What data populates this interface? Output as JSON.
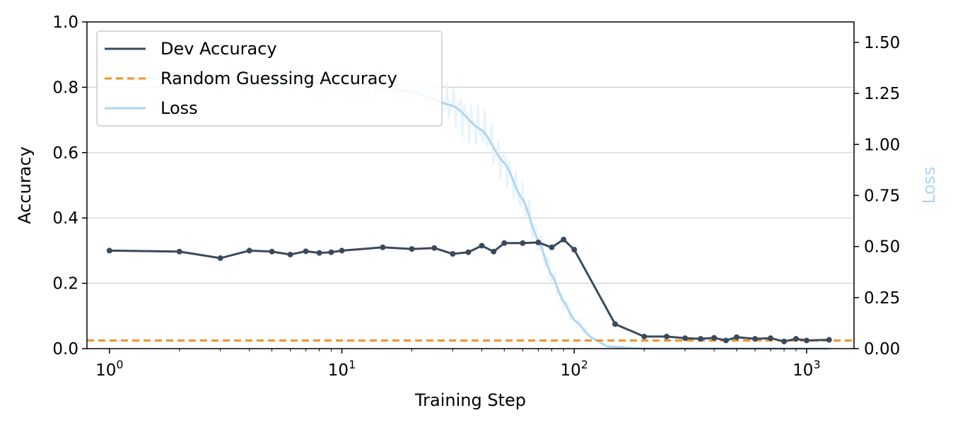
{
  "chart_data": {
    "type": "line",
    "xlabel": "Training Step",
    "ylabel": "Accuracy",
    "y2label": "Loss",
    "xscale": "log",
    "xlim": [
      0.8,
      1600
    ],
    "ylim": [
      0,
      1.0
    ],
    "y2lim": [
      0,
      1.6
    ],
    "x_ticks": [
      1,
      10,
      100,
      1000
    ],
    "x_tick_labels": [
      {
        "base": "10",
        "exp": "0"
      },
      {
        "base": "10",
        "exp": "1"
      },
      {
        "base": "10",
        "exp": "2"
      },
      {
        "base": "10",
        "exp": "3"
      }
    ],
    "y_ticks": [
      "0.0",
      "0.2",
      "0.4",
      "0.6",
      "0.8",
      "1.0"
    ],
    "y2_ticks": [
      "0.00",
      "0.25",
      "0.50",
      "0.75",
      "1.00",
      "1.25",
      "1.50"
    ],
    "grid": "horizontal",
    "legend": {
      "placement": "upper-left",
      "entries": [
        {
          "label": "Dev Accuracy",
          "color": "#3a4a5c",
          "style": "solid"
        },
        {
          "label": "Random Guessing Accuracy",
          "color": "#f0932b",
          "style": "dashed"
        },
        {
          "label": "Loss",
          "color": "#aed6f1",
          "style": "solid"
        }
      ]
    },
    "colors": {
      "accuracy": "#3a4a5c",
      "baseline": "#f0932b",
      "loss": "#aed6f1",
      "loss_raw": "#e8f3fb",
      "y2label": "#aed6f1",
      "grid": "#d0d0d0"
    },
    "series": [
      {
        "name": "Dev Accuracy",
        "axis": "left",
        "x": [
          1,
          2,
          3,
          4,
          5,
          6,
          7,
          8,
          9,
          10,
          15,
          20,
          25,
          30,
          35,
          40,
          45,
          50,
          60,
          70,
          80,
          90,
          100,
          150,
          200,
          250,
          300,
          350,
          400,
          450,
          500,
          600,
          700,
          800,
          900,
          1000,
          1250
        ],
        "y": [
          0.3,
          0.297,
          0.277,
          0.3,
          0.297,
          0.288,
          0.298,
          0.293,
          0.295,
          0.3,
          0.31,
          0.305,
          0.308,
          0.29,
          0.295,
          0.315,
          0.297,
          0.323,
          0.323,
          0.325,
          0.31,
          0.334,
          0.303,
          0.075,
          0.037,
          0.037,
          0.032,
          0.03,
          0.033,
          0.025,
          0.035,
          0.03,
          0.032,
          0.022,
          0.03,
          0.025,
          0.027
        ]
      },
      {
        "name": "Random Guessing Accuracy",
        "axis": "left",
        "y_constant": 0.025
      },
      {
        "name": "Loss",
        "axis": "right",
        "x": [
          1,
          2,
          5,
          10,
          20,
          30,
          40,
          50,
          60,
          70,
          80,
          90,
          100,
          120,
          140,
          200,
          500,
          1000,
          1250
        ],
        "y": [
          1.33,
          1.32,
          1.31,
          1.3,
          1.26,
          1.19,
          1.07,
          0.91,
          0.73,
          0.53,
          0.36,
          0.23,
          0.14,
          0.05,
          0.01,
          0.0,
          0.0,
          0.0,
          0.0
        ]
      }
    ]
  }
}
